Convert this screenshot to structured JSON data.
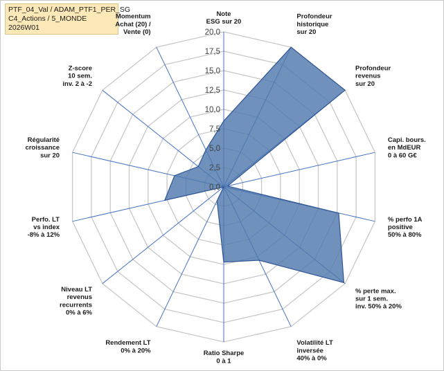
{
  "header": {
    "lines": [
      "PTF_04_Val / ADAM_PTF1_PER_SG",
      "C4_Actions / 5_MONDE",
      "2026W01"
    ]
  },
  "colors": {
    "fill": "#4f79ad",
    "stroke": "#2f5597",
    "axis": "#4472c4",
    "grid": "#c8c8c8",
    "header_bg": "#fde9b8"
  },
  "chart_data": {
    "type": "radar",
    "title": "",
    "grid": true,
    "rlim": [
      0,
      20
    ],
    "ticks": [
      "0,0",
      "2,5",
      "5,0",
      "7,5",
      "10,0",
      "12,5",
      "15,0",
      "17,5",
      "20,0"
    ],
    "axes": [
      [
        "Note",
        "ESG sur 20"
      ],
      [
        "Profondeur",
        "historique",
        "sur 20"
      ],
      [
        "Profondeur",
        "revenus",
        "sur 20"
      ],
      [
        "Capi. bours.",
        "en MdEUR",
        "0 à 60 G€"
      ],
      [
        "% perfo 1A",
        "positive",
        "50% à 80%"
      ],
      [
        "% perte max.",
        "sur 1 sem.",
        "inv. 50% à 20%"
      ],
      [
        "Volatilité LT",
        "inversée",
        "40% à 0%"
      ],
      [
        "Ratio Sharpe",
        "0 à 1"
      ],
      [
        "Rendement LT",
        "0% à 20%"
      ],
      [
        "Niveau LT",
        "revenus",
        "recurrents",
        "0% à 6%"
      ],
      [
        "Perfo. LT",
        "vs index",
        "-8% à 12%"
      ],
      [
        "Régularité",
        "croissance",
        "sur 20"
      ],
      [
        "Z-score",
        "10 sem.",
        "inv. 2 à -2"
      ],
      [
        "Momentum",
        "Achat (20) /",
        "Vente (0)"
      ]
    ],
    "series": [
      {
        "values": [
          8.5,
          20.0,
          20.0,
          0.5,
          15.2,
          19.8,
          10.5,
          9.7,
          2.0,
          0.0,
          7.8,
          6.5,
          4.2,
          5.3
        ]
      }
    ]
  }
}
